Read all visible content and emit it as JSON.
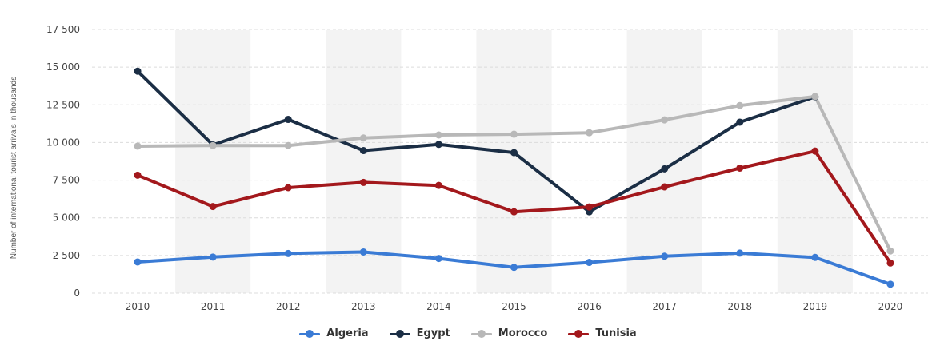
{
  "chart_data": {
    "type": "line",
    "ylabel": "Number of international tourist arrivals in thousands",
    "xlabel": "",
    "ylim": [
      0,
      17500
    ],
    "yticks": [
      0,
      2500,
      5000,
      7500,
      10000,
      12500,
      15000,
      17500
    ],
    "ytick_labels": [
      "0",
      "2 500",
      "5 000",
      "7 500",
      "10 000",
      "12 500",
      "15 000",
      "17 500"
    ],
    "categories": [
      "2010",
      "2011",
      "2012",
      "2013",
      "2014",
      "2015",
      "2016",
      "2017",
      "2018",
      "2019",
      "2020"
    ],
    "grid": true,
    "legend_position": "bottom",
    "series": [
      {
        "name": "Algeria",
        "color": "#3a7bd5",
        "values": [
          2070,
          2395,
          2634,
          2733,
          2301,
          1710,
          2039,
          2451,
          2657,
          2371,
          591
        ]
      },
      {
        "name": "Egypt",
        "color": "#1b2e45",
        "values": [
          14731,
          9845,
          11532,
          9464,
          9875,
          9328,
          5400,
          8250,
          11350,
          13030,
          null
        ]
      },
      {
        "name": "Morocco",
        "color": "#b8b8b8",
        "values": [
          9760,
          9800,
          9800,
          10300,
          10500,
          10550,
          10650,
          11500,
          12450,
          13050,
          2800
        ]
      },
      {
        "name": "Tunisia",
        "color": "#a3181c",
        "values": [
          7830,
          5750,
          7000,
          7350,
          7150,
          5400,
          5720,
          7050,
          8300,
          9430,
          2000
        ]
      }
    ]
  }
}
